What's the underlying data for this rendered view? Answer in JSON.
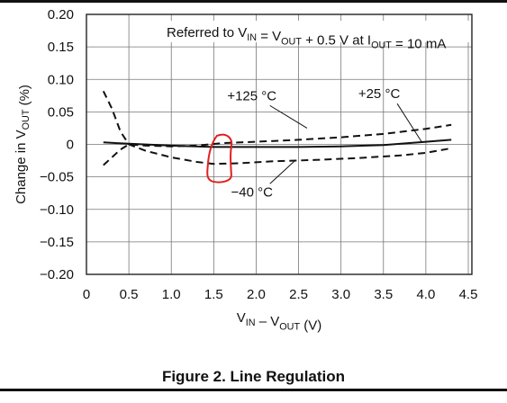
{
  "figure": {
    "caption": "Figure 2. Line Regulation"
  },
  "chart_data": {
    "type": "line",
    "title": "",
    "annotation": {
      "parts": [
        {
          "t": "Referred to V",
          "sub": false
        },
        {
          "t": "IN",
          "sub": true
        },
        {
          "t": " = V",
          "sub": false
        },
        {
          "t": "OUT",
          "sub": true
        },
        {
          "t": " + 0.5 V at I",
          "sub": false
        },
        {
          "t": "OUT",
          "sub": true
        },
        {
          "t": " = 10 mA",
          "sub": false
        }
      ]
    },
    "xlabel": {
      "parts": [
        {
          "t": "V",
          "sub": false
        },
        {
          "t": "IN",
          "sub": true
        },
        {
          "t": " – V",
          "sub": false
        },
        {
          "t": "OUT",
          "sub": true
        },
        {
          "t": " (V)",
          "sub": false
        }
      ]
    },
    "ylabel": {
      "parts": [
        {
          "t": "Change in V",
          "sub": false
        },
        {
          "t": "OUT",
          "sub": true
        },
        {
          "t": " (%)",
          "sub": false
        }
      ]
    },
    "xlim": [
      0,
      4.5
    ],
    "ylim": [
      -0.2,
      0.2
    ],
    "grid": true,
    "x_ticks": [
      {
        "v": 0,
        "label": "0"
      },
      {
        "v": 0.5,
        "label": "0.5"
      },
      {
        "v": 1.0,
        "label": "1.0"
      },
      {
        "v": 1.5,
        "label": "1.5"
      },
      {
        "v": 2.0,
        "label": "2.0"
      },
      {
        "v": 2.5,
        "label": "2.5"
      },
      {
        "v": 3.0,
        "label": "3.0"
      },
      {
        "v": 3.5,
        "label": "3.5"
      },
      {
        "v": 4.0,
        "label": "4.0"
      },
      {
        "v": 4.5,
        "label": "4.5"
      }
    ],
    "y_ticks": [
      {
        "v": 0.2,
        "label": "0.20"
      },
      {
        "v": 0.15,
        "label": "0.15"
      },
      {
        "v": 0.1,
        "label": "0.10"
      },
      {
        "v": 0.05,
        "label": "0.05"
      },
      {
        "v": 0,
        "label": "0"
      },
      {
        "v": -0.05,
        "label": "−0.05"
      },
      {
        "v": -0.1,
        "label": "−0.10"
      },
      {
        "v": -0.15,
        "label": "−0.15"
      },
      {
        "v": -0.2,
        "label": "−0.20"
      }
    ],
    "series": [
      {
        "name": "+125 °C",
        "style": "dashed",
        "x": [
          0.2,
          0.3,
          0.4,
          0.5,
          0.7,
          1.0,
          1.3,
          1.6,
          2.0,
          2.5,
          3.0,
          3.5,
          4.0,
          4.3
        ],
        "y": [
          -0.032,
          -0.02,
          -0.008,
          0.0,
          -0.002,
          -0.003,
          -0.002,
          0.002,
          0.004,
          0.007,
          0.011,
          0.016,
          0.024,
          0.03
        ]
      },
      {
        "name": "+25 °C",
        "style": "solid",
        "x": [
          0.2,
          0.5,
          1.0,
          1.5,
          2.0,
          2.5,
          3.0,
          3.5,
          4.0,
          4.3
        ],
        "y": [
          0.003,
          0.001,
          -0.002,
          -0.004,
          -0.004,
          -0.004,
          -0.003,
          -0.001,
          0.004,
          0.007
        ]
      },
      {
        "name": "−40 °C",
        "style": "dashed",
        "x": [
          0.2,
          0.3,
          0.4,
          0.5,
          0.7,
          1.0,
          1.3,
          1.5,
          1.8,
          2.2,
          2.7,
          3.2,
          3.7,
          4.0,
          4.3
        ],
        "y": [
          0.082,
          0.055,
          0.02,
          0.0,
          -0.01,
          -0.02,
          -0.027,
          -0.03,
          -0.029,
          -0.026,
          -0.024,
          -0.021,
          -0.017,
          -0.013,
          -0.006
        ]
      }
    ],
    "series_labels": [
      {
        "text": "+125 °C",
        "at": [
          1.95,
          0.068
        ],
        "leader_to": [
          2.6,
          0.025
        ]
      },
      {
        "text": "+25 °C",
        "at": [
          3.45,
          0.071
        ],
        "leader_to": [
          3.95,
          0.004
        ]
      },
      {
        "text": "−40 °C",
        "at": [
          1.95,
          -0.08
        ],
        "leader_to": [
          2.45,
          -0.026
        ]
      }
    ],
    "highlight": {
      "shape": "hand-drawn loop",
      "color": "#e02020",
      "center": [
        1.58,
        -0.02
      ]
    }
  }
}
